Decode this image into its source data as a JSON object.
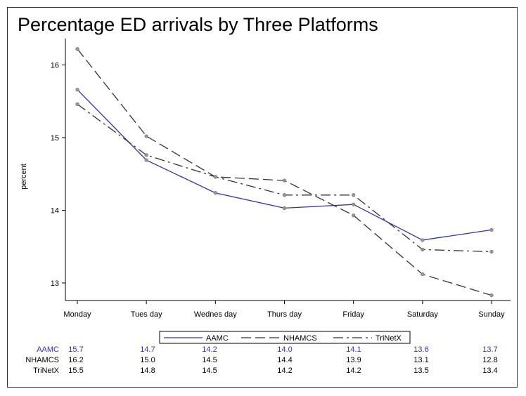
{
  "chart_data": {
    "type": "line",
    "title": "Percentage ED arrivals by Three Platforms",
    "xlabel": "",
    "ylabel": "percent",
    "categories": [
      "Monday",
      "Tues day",
      "Wednes day",
      "Thurs day",
      "Friday",
      "Saturday",
      "Sunday"
    ],
    "ylim": [
      12.75,
      16.3
    ],
    "yticks": [
      13,
      14,
      15,
      16
    ],
    "grid": false,
    "legend_position": "bottom",
    "series": [
      {
        "name": "AAMC",
        "color": "#3333aa",
        "dash": "solid",
        "values": [
          15.66,
          14.69,
          14.24,
          14.03,
          14.08,
          13.59,
          13.73
        ],
        "table_label": "AAMC",
        "table_values": [
          "15.7",
          "14.7",
          "14.2",
          "14.0",
          "14.1",
          "13.6",
          "13.7"
        ]
      },
      {
        "name": "NHAMCS",
        "color": "#333333",
        "dash": "long",
        "values": [
          16.22,
          15.02,
          14.46,
          14.41,
          13.93,
          13.12,
          12.83
        ],
        "table_label": "NHAMCS",
        "table_values": [
          "16.2",
          "15.0",
          "14.5",
          "14.4",
          "13.9",
          "13.1",
          "12.8"
        ]
      },
      {
        "name": "TriNetX",
        "color": "#333333",
        "dash": "dashdot",
        "values": [
          15.46,
          14.76,
          14.46,
          14.21,
          14.21,
          13.46,
          13.43
        ],
        "table_label": "TriNetX",
        "table_values": [
          "15.5",
          "14.8",
          "14.5",
          "14.2",
          "14.2",
          "13.5",
          "13.4"
        ]
      }
    ]
  }
}
